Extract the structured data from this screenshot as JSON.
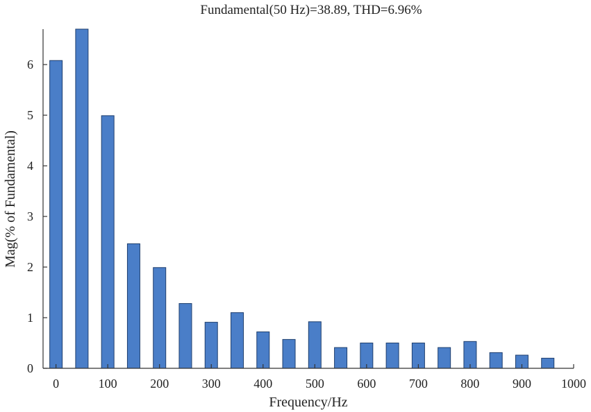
{
  "chart_data": {
    "type": "bar",
    "title": "Fundamental(50 Hz)=38.89, THD=6.96%",
    "xlabel": "Frequency/Hz",
    "ylabel": "Mag(% of Fundamental)",
    "xlim": [
      -25,
      1000
    ],
    "ylim": [
      0,
      6.7
    ],
    "x_ticks": [
      0,
      100,
      200,
      300,
      400,
      500,
      600,
      700,
      800,
      900,
      1000
    ],
    "y_ticks": [
      0,
      1,
      2,
      3,
      4,
      5,
      6
    ],
    "bar_color": "#4a7ec8",
    "grid": false,
    "x": [
      0,
      50,
      100,
      150,
      200,
      250,
      300,
      350,
      400,
      450,
      500,
      550,
      600,
      650,
      700,
      750,
      800,
      850,
      900,
      950
    ],
    "values": [
      6.08,
      6.7,
      4.99,
      2.46,
      1.99,
      1.28,
      0.91,
      1.1,
      0.72,
      0.57,
      0.92,
      0.41,
      0.5,
      0.5,
      0.5,
      0.41,
      0.53,
      0.31,
      0.26,
      0.2
    ]
  }
}
